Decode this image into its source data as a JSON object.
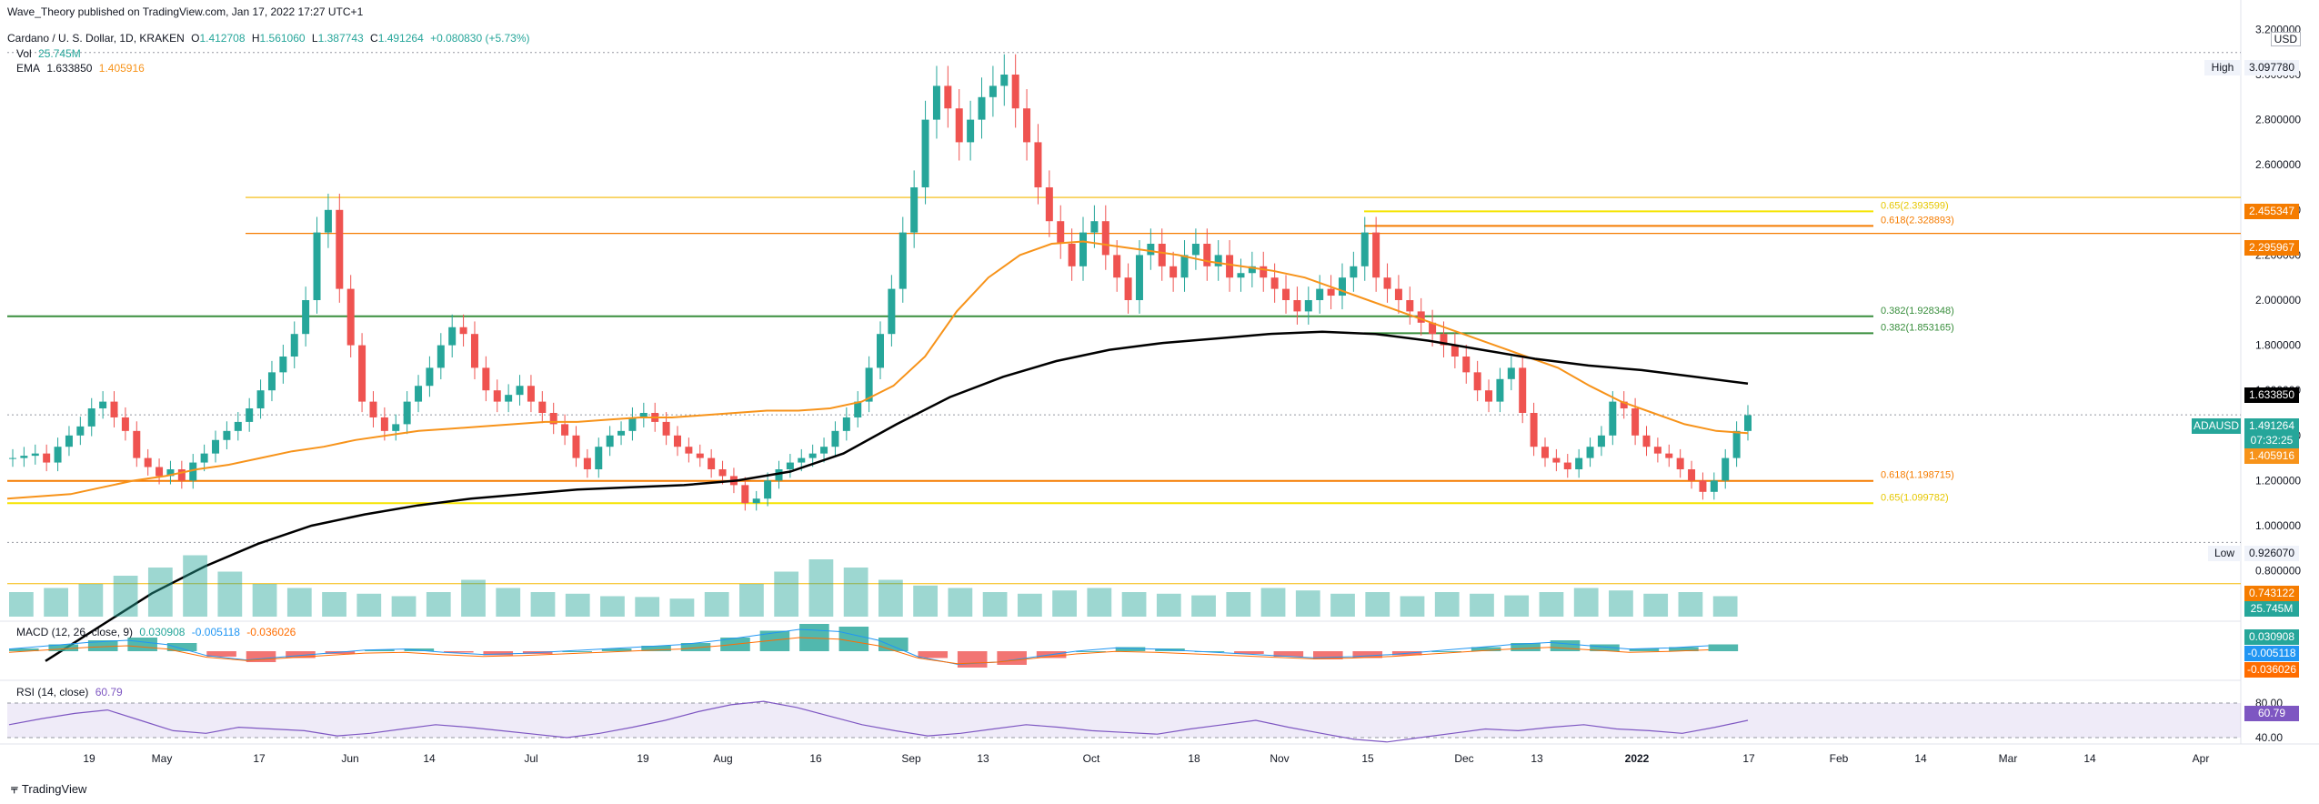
{
  "header": {
    "publisher": "Wave_Theory published on TradingView.com, Jan 17, 2022 17:27 UTC+1",
    "symbol": "Cardano / U. S. Dollar, 1D, KRAKEN",
    "o_label": "O",
    "o": "1.412708",
    "h_label": "H",
    "h": "1.561060",
    "l_label": "L",
    "l": "1.387743",
    "c_label": "C",
    "c": "1.491264",
    "change": "+0.080830 (+5.73%)",
    "vol_label": "Vol",
    "vol": "25.745M",
    "ema_label": "EMA",
    "ema_a": "1.633850",
    "ema_b": "1.405916",
    "macd_label": "MACD (12, 26, close, 9)",
    "macd_a": "0.030908",
    "macd_b": "-0.005118",
    "macd_c": "-0.036026",
    "rsi_label": "RSI (14, close)",
    "rsi": "60.79"
  },
  "currency": "USD",
  "price_badges": {
    "high_label": "High",
    "high": "3.097780",
    "low_label": "Low",
    "low": "0.926070",
    "b1": "2.455347",
    "b2": "2.295967",
    "ema200": "1.633850",
    "ticker": "ADAUSD",
    "last": "1.491264",
    "countdown": "07:32:25",
    "ema50": "1.405916",
    "vol_line": "0.743122",
    "vol": "25.745M",
    "macd": "0.030908",
    "signal": "-0.005118",
    "hist": "-0.036026",
    "rsi": "60.79"
  },
  "fib_labels": [
    {
      "text": "0.65(2.393599)",
      "price": 2.393599
    },
    {
      "text": "0.618(2.328893)",
      "price": 2.328893
    },
    {
      "text": "0.382(1.928348)",
      "price": 1.928348
    },
    {
      "text": "0.382(1.853165)",
      "price": 1.853165
    },
    {
      "text": "0.618(1.198715)",
      "price": 1.198715
    },
    {
      "text": "0.65(1.099782)",
      "price": 1.099782
    }
  ],
  "footer": "TradingView",
  "colors": {
    "up": "#26a69a",
    "down": "#ef5350",
    "ema50": "#f7931a",
    "ema200": "#000000",
    "fib_orange": "#f57c00",
    "fib_yellow": "#f5e400",
    "fib_green": "#388e3c",
    "macd": "#2196f3",
    "signal": "#ff6d00",
    "rsi": "#7e57c2"
  },
  "chart_data": {
    "type": "candlestick",
    "title": "Cardano / U. S. Dollar, 1D, KRAKEN",
    "y_ticks": [
      "3.200000",
      "3.000000",
      "2.800000",
      "2.600000",
      "2.400000",
      "2.200000",
      "2.000000",
      "1.800000",
      "1.600000",
      "1.400000",
      "1.200000",
      "1.000000",
      "0.800000"
    ],
    "rsi_ticks": [
      "80.00",
      "40.00"
    ],
    "x_ticks": [
      "19",
      "May",
      "17",
      "Jun",
      "14",
      "Jul",
      "19",
      "Aug",
      "16",
      "Sep",
      "13",
      "Oct",
      "18",
      "Nov",
      "15",
      "Dec",
      "13",
      "2022",
      "17",
      "Feb",
      "14",
      "Mar",
      "14",
      "Apr"
    ],
    "ylim": [
      0.75,
      3.25
    ],
    "close_series": [
      1.3,
      1.31,
      1.32,
      1.28,
      1.35,
      1.4,
      1.44,
      1.52,
      1.55,
      1.48,
      1.42,
      1.3,
      1.26,
      1.22,
      1.25,
      1.2,
      1.28,
      1.32,
      1.38,
      1.42,
      1.46,
      1.52,
      1.6,
      1.68,
      1.75,
      1.85,
      2.0,
      2.3,
      2.4,
      2.05,
      1.8,
      1.55,
      1.48,
      1.42,
      1.45,
      1.55,
      1.62,
      1.7,
      1.8,
      1.88,
      1.85,
      1.7,
      1.6,
      1.55,
      1.58,
      1.62,
      1.55,
      1.5,
      1.45,
      1.4,
      1.3,
      1.25,
      1.35,
      1.4,
      1.42,
      1.48,
      1.5,
      1.46,
      1.4,
      1.35,
      1.32,
      1.3,
      1.25,
      1.22,
      1.18,
      1.1,
      1.12,
      1.2,
      1.25,
      1.28,
      1.3,
      1.32,
      1.35,
      1.42,
      1.48,
      1.55,
      1.7,
      1.85,
      2.05,
      2.3,
      2.5,
      2.8,
      2.95,
      2.85,
      2.7,
      2.8,
      2.9,
      2.95,
      3.0,
      2.85,
      2.7,
      2.5,
      2.35,
      2.25,
      2.15,
      2.3,
      2.35,
      2.2,
      2.1,
      2.0,
      2.2,
      2.25,
      2.15,
      2.1,
      2.2,
      2.25,
      2.15,
      2.2,
      2.1,
      2.12,
      2.15,
      2.1,
      2.05,
      2.0,
      1.95,
      2.0,
      2.05,
      2.02,
      2.1,
      2.15,
      2.3,
      2.1,
      2.05,
      2.0,
      1.95,
      1.9,
      1.85,
      1.8,
      1.75,
      1.68,
      1.6,
      1.55,
      1.65,
      1.7,
      1.5,
      1.35,
      1.3,
      1.28,
      1.25,
      1.3,
      1.35,
      1.4,
      1.55,
      1.52,
      1.4,
      1.35,
      1.32,
      1.3,
      1.25,
      1.2,
      1.15,
      1.2,
      1.3,
      1.42,
      1.49
    ],
    "ema50_series": [
      1.12,
      1.13,
      1.14,
      1.17,
      1.2,
      1.22,
      1.25,
      1.27,
      1.3,
      1.33,
      1.35,
      1.38,
      1.4,
      1.42,
      1.43,
      1.44,
      1.45,
      1.46,
      1.46,
      1.47,
      1.48,
      1.48,
      1.49,
      1.5,
      1.51,
      1.51,
      1.52,
      1.55,
      1.62,
      1.75,
      1.95,
      2.1,
      2.2,
      2.25,
      2.26,
      2.24,
      2.22,
      2.2,
      2.17,
      2.15,
      2.13,
      2.1,
      2.05,
      2.0,
      1.95,
      1.9,
      1.85,
      1.8,
      1.75,
      1.7,
      1.62,
      1.55,
      1.5,
      1.45,
      1.42,
      1.41
    ],
    "ema200_series": [
      0.4,
      0.55,
      0.7,
      0.82,
      0.92,
      1.0,
      1.05,
      1.09,
      1.12,
      1.14,
      1.16,
      1.17,
      1.18,
      1.2,
      1.24,
      1.32,
      1.45,
      1.57,
      1.66,
      1.73,
      1.78,
      1.81,
      1.83,
      1.85,
      1.86,
      1.85,
      1.82,
      1.78,
      1.74,
      1.71,
      1.69,
      1.66,
      1.63
    ],
    "macd_hist": [
      0.02,
      0.05,
      0.08,
      0.1,
      0.06,
      -0.04,
      -0.08,
      -0.05,
      -0.02,
      0.01,
      0.02,
      -0.01,
      -0.03,
      -0.02,
      0.0,
      0.02,
      0.04,
      0.06,
      0.1,
      0.15,
      0.2,
      0.18,
      0.1,
      -0.05,
      -0.12,
      -0.1,
      -0.05,
      0.0,
      0.03,
      0.02,
      0.0,
      -0.02,
      -0.04,
      -0.06,
      -0.05,
      -0.03,
      0.0,
      0.03,
      0.06,
      0.08,
      0.05,
      0.02,
      0.03,
      0.05
    ],
    "rsi_series": [
      55,
      62,
      68,
      72,
      60,
      48,
      45,
      52,
      50,
      48,
      42,
      45,
      50,
      55,
      52,
      48,
      44,
      40,
      45,
      52,
      60,
      70,
      78,
      82,
      75,
      65,
      55,
      48,
      42,
      45,
      50,
      55,
      52,
      48,
      46,
      44,
      50,
      55,
      60,
      52,
      45,
      38,
      35,
      40,
      45,
      50,
      48,
      52,
      55,
      50,
      48,
      45,
      52,
      60
    ],
    "volume_series": [
      30,
      35,
      40,
      50,
      60,
      75,
      55,
      40,
      35,
      30,
      28,
      25,
      30,
      45,
      35,
      30,
      28,
      25,
      24,
      22,
      30,
      40,
      55,
      70,
      60,
      45,
      38,
      35,
      30,
      28,
      32,
      35,
      30,
      28,
      26,
      30,
      35,
      32,
      28,
      30,
      25,
      30,
      28,
      26,
      30,
      35,
      32,
      28,
      30,
      25
    ]
  }
}
